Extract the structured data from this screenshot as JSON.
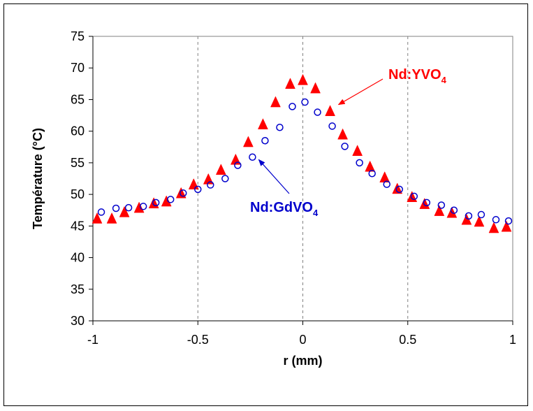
{
  "chart_data": {
    "type": "scatter",
    "xlabel": "r (mm)",
    "ylabel": "Température (°C)",
    "xlim": [
      -1,
      1
    ],
    "ylim": [
      30,
      75
    ],
    "x_ticks": [
      "-1",
      "-0.5",
      "0",
      "0.5",
      "1"
    ],
    "y_ticks": [
      "30",
      "35",
      "40",
      "45",
      "50",
      "55",
      "60",
      "65",
      "70",
      "75"
    ],
    "grid": "dashed vertical gridlines",
    "series": [
      {
        "name": "Nd:YVO4",
        "marker": "filled-triangle",
        "color": "#ff0000",
        "x": [
          -0.98,
          -0.91,
          -0.85,
          -0.78,
          -0.71,
          -0.65,
          -0.58,
          -0.52,
          -0.45,
          -0.39,
          -0.32,
          -0.26,
          -0.19,
          -0.13,
          -0.06,
          0.0,
          0.06,
          0.13,
          0.19,
          0.26,
          0.32,
          0.39,
          0.45,
          0.52,
          0.58,
          0.65,
          0.71,
          0.78,
          0.84,
          0.91,
          0.97
        ],
        "y": [
          46.2,
          46.2,
          47.2,
          47.9,
          48.6,
          48.9,
          50.2,
          51.6,
          52.4,
          53.9,
          55.5,
          58.3,
          61.1,
          64.6,
          67.5,
          68.1,
          66.8,
          63.2,
          59.5,
          56.9,
          54.4,
          52.7,
          50.9,
          49.6,
          48.5,
          47.4,
          47.1,
          46.0,
          45.7,
          44.7,
          44.9
        ]
      },
      {
        "name": "Nd:GdVO4",
        "marker": "open-circle",
        "color": "#0000cc",
        "x": [
          -0.96,
          -0.89,
          -0.83,
          -0.76,
          -0.7,
          -0.63,
          -0.57,
          -0.5,
          -0.44,
          -0.37,
          -0.31,
          -0.24,
          -0.18,
          -0.11,
          -0.05,
          0.01,
          0.07,
          0.14,
          0.2,
          0.27,
          0.33,
          0.4,
          0.46,
          0.53,
          0.59,
          0.66,
          0.72,
          0.79,
          0.85,
          0.92,
          0.98
        ],
        "y": [
          47.2,
          47.8,
          47.9,
          48.1,
          48.7,
          49.2,
          50.2,
          50.8,
          51.5,
          52.5,
          54.6,
          55.9,
          58.5,
          60.6,
          63.9,
          64.6,
          63.0,
          60.8,
          57.6,
          55.0,
          53.3,
          51.6,
          50.8,
          49.7,
          48.7,
          48.3,
          47.5,
          46.6,
          46.8,
          46.0,
          45.8
        ]
      }
    ],
    "annotations": [
      {
        "text": "Nd:YVO",
        "sub": "4",
        "color": "#ff0000"
      },
      {
        "text": "Nd:GdVO",
        "sub": "4",
        "color": "#0000cc"
      }
    ]
  }
}
